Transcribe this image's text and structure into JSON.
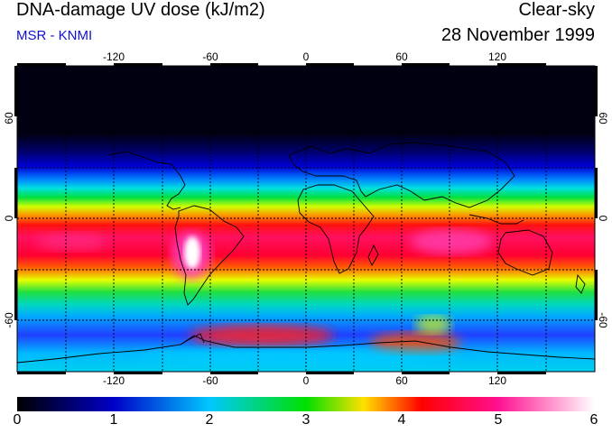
{
  "header": {
    "title": "DNA-damage UV dose (kJ/m2)",
    "subtitle": "MSR - KNMI",
    "mode": "Clear-sky",
    "date": "28 November 1999"
  },
  "map": {
    "lon_ticks": [
      "-120",
      "-60",
      "0",
      "60",
      "120"
    ],
    "lat_ticks_left": [
      "60",
      "0",
      "-60"
    ],
    "lat_ticks_right": [
      "60",
      "0",
      "-60"
    ],
    "lon_range": [
      -180,
      180
    ],
    "lat_range": [
      -90,
      90
    ]
  },
  "colorbar": {
    "labels": [
      "0",
      "1",
      "2",
      "3",
      "4",
      "5",
      "6"
    ],
    "range": [
      0,
      6
    ],
    "colors": [
      "#000000",
      "#0000c8",
      "#00c8ff",
      "#00e000",
      "#ffe000",
      "#ff0000",
      "#ff1090",
      "#ffffff"
    ]
  }
}
